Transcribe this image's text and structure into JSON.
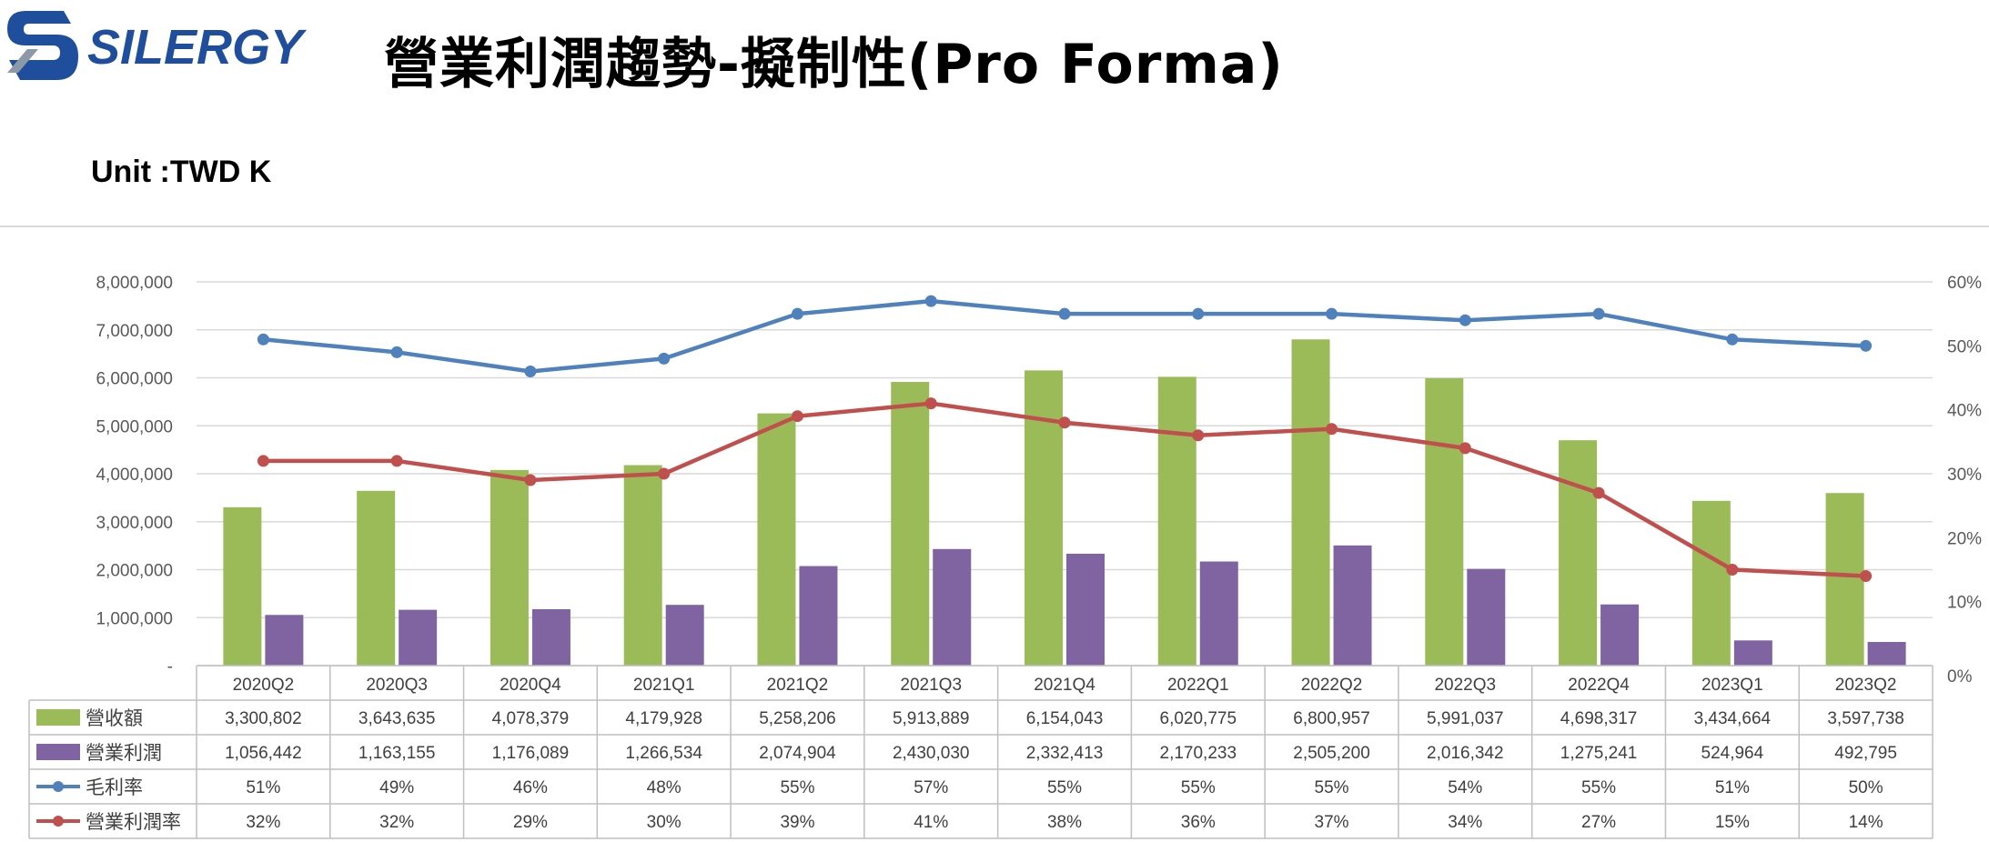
{
  "header": {
    "title": "營業利潤趨勢-擬制性(Pro Forma)",
    "unit": "Unit :TWD K",
    "logo_text": "SILERGY"
  },
  "colors": {
    "revenue": "#9bbb59",
    "operating_profit": "#8064a2",
    "gross_margin": "#4f81bd",
    "operating_margin": "#c0504d",
    "logo_blue": "#1f4e9c",
    "logo_gray": "#8c9aa8"
  },
  "chart_data": {
    "type": "bar",
    "categories": [
      "2020Q2",
      "2020Q3",
      "2020Q4",
      "2021Q1",
      "2021Q2",
      "2021Q3",
      "2021Q4",
      "2022Q1",
      "2022Q2",
      "2022Q3",
      "2022Q4",
      "2023Q1",
      "2023Q2"
    ],
    "y_left": {
      "ylim": [
        0,
        8000000
      ],
      "ticks": [
        "-",
        "1,000,000",
        "2,000,000",
        "3,000,000",
        "4,000,000",
        "5,000,000",
        "6,000,000",
        "7,000,000",
        "8,000,000"
      ]
    },
    "y_right": {
      "ylim": [
        0,
        60
      ],
      "ticks": [
        "0%",
        "10%",
        "20%",
        "30%",
        "40%",
        "50%",
        "60%"
      ]
    },
    "grid": true,
    "series": [
      {
        "name": "營收額",
        "kind": "bar",
        "axis": "left",
        "values": [
          3300802,
          3643635,
          4078379,
          4179928,
          5258206,
          5913889,
          6154043,
          6020775,
          6800957,
          5991037,
          4698317,
          3434664,
          3597738
        ],
        "labels": [
          "3,300,802",
          "3,643,635",
          "4,078,379",
          "4,179,928",
          "5,258,206",
          "5,913,889",
          "6,154,043",
          "6,020,775",
          "6,800,957",
          "5,991,037",
          "4,698,317",
          "3,434,664",
          "3,597,738"
        ]
      },
      {
        "name": "營業利潤",
        "kind": "bar",
        "axis": "left",
        "values": [
          1056442,
          1163155,
          1176089,
          1266534,
          2074904,
          2430030,
          2332413,
          2170233,
          2505200,
          2016342,
          1275241,
          524964,
          492795
        ],
        "labels": [
          "1,056,442",
          "1,163,155",
          "1,176,089",
          "1,266,534",
          "2,074,904",
          "2,430,030",
          "2,332,413",
          "2,170,233",
          "2,505,200",
          "2,016,342",
          "1,275,241",
          "524,964",
          "492,795"
        ]
      },
      {
        "name": "毛利率",
        "kind": "line",
        "axis": "right",
        "values": [
          51,
          49,
          46,
          48,
          55,
          57,
          55,
          55,
          55,
          54,
          55,
          51,
          50
        ],
        "labels": [
          "51%",
          "49%",
          "46%",
          "48%",
          "55%",
          "57%",
          "55%",
          "55%",
          "55%",
          "54%",
          "55%",
          "51%",
          "50%"
        ]
      },
      {
        "name": "營業利潤率",
        "kind": "line",
        "axis": "right",
        "values": [
          32,
          32,
          29,
          30,
          39,
          41,
          38,
          36,
          37,
          34,
          27,
          15,
          14
        ],
        "labels": [
          "32%",
          "32%",
          "29%",
          "30%",
          "39%",
          "41%",
          "38%",
          "36%",
          "37%",
          "34%",
          "27%",
          "15%",
          "14%"
        ]
      }
    ]
  }
}
